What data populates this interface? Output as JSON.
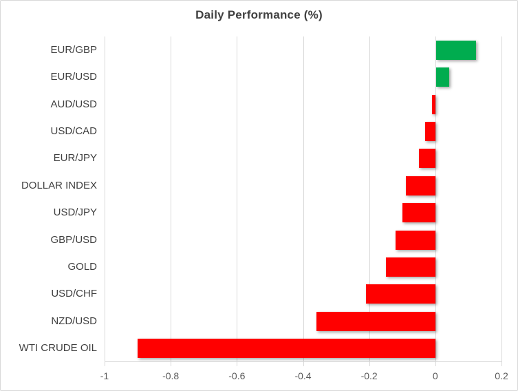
{
  "chart_data": {
    "type": "bar",
    "orientation": "horizontal",
    "title": "Daily Performance (%)",
    "categories": [
      "EUR/GBP",
      "EUR/USD",
      "AUD/USD",
      "USD/CAD",
      "EUR/JPY",
      "DOLLAR INDEX",
      "USD/JPY",
      "GBP/USD",
      "GOLD",
      "USD/CHF",
      "NZD/USD",
      "WTI CRUDE OIL"
    ],
    "values": [
      0.12,
      0.04,
      -0.01,
      -0.03,
      -0.05,
      -0.09,
      -0.1,
      -0.12,
      -0.15,
      -0.21,
      -0.36,
      -0.9
    ],
    "xlim": [
      -1,
      0.2
    ],
    "x_ticks": [
      -1,
      -0.8,
      -0.6,
      -0.4,
      -0.2,
      0,
      0.2
    ],
    "x_tick_labels": [
      "-1",
      "-0.8",
      "-0.6",
      "-0.4",
      "-0.2",
      "0",
      "0.2"
    ],
    "grid": true,
    "legend": "none",
    "colors": {
      "positive_bar": "#00ac4f",
      "negative_bar": "#ff0000",
      "gridline": "#d9d9d9",
      "axis_line": "#d9d9d9",
      "border": "#d9d9d9",
      "title_text": "#404040",
      "category_text": "#3f3f3f",
      "axis_text": "#595959",
      "background": "#ffffff"
    }
  }
}
